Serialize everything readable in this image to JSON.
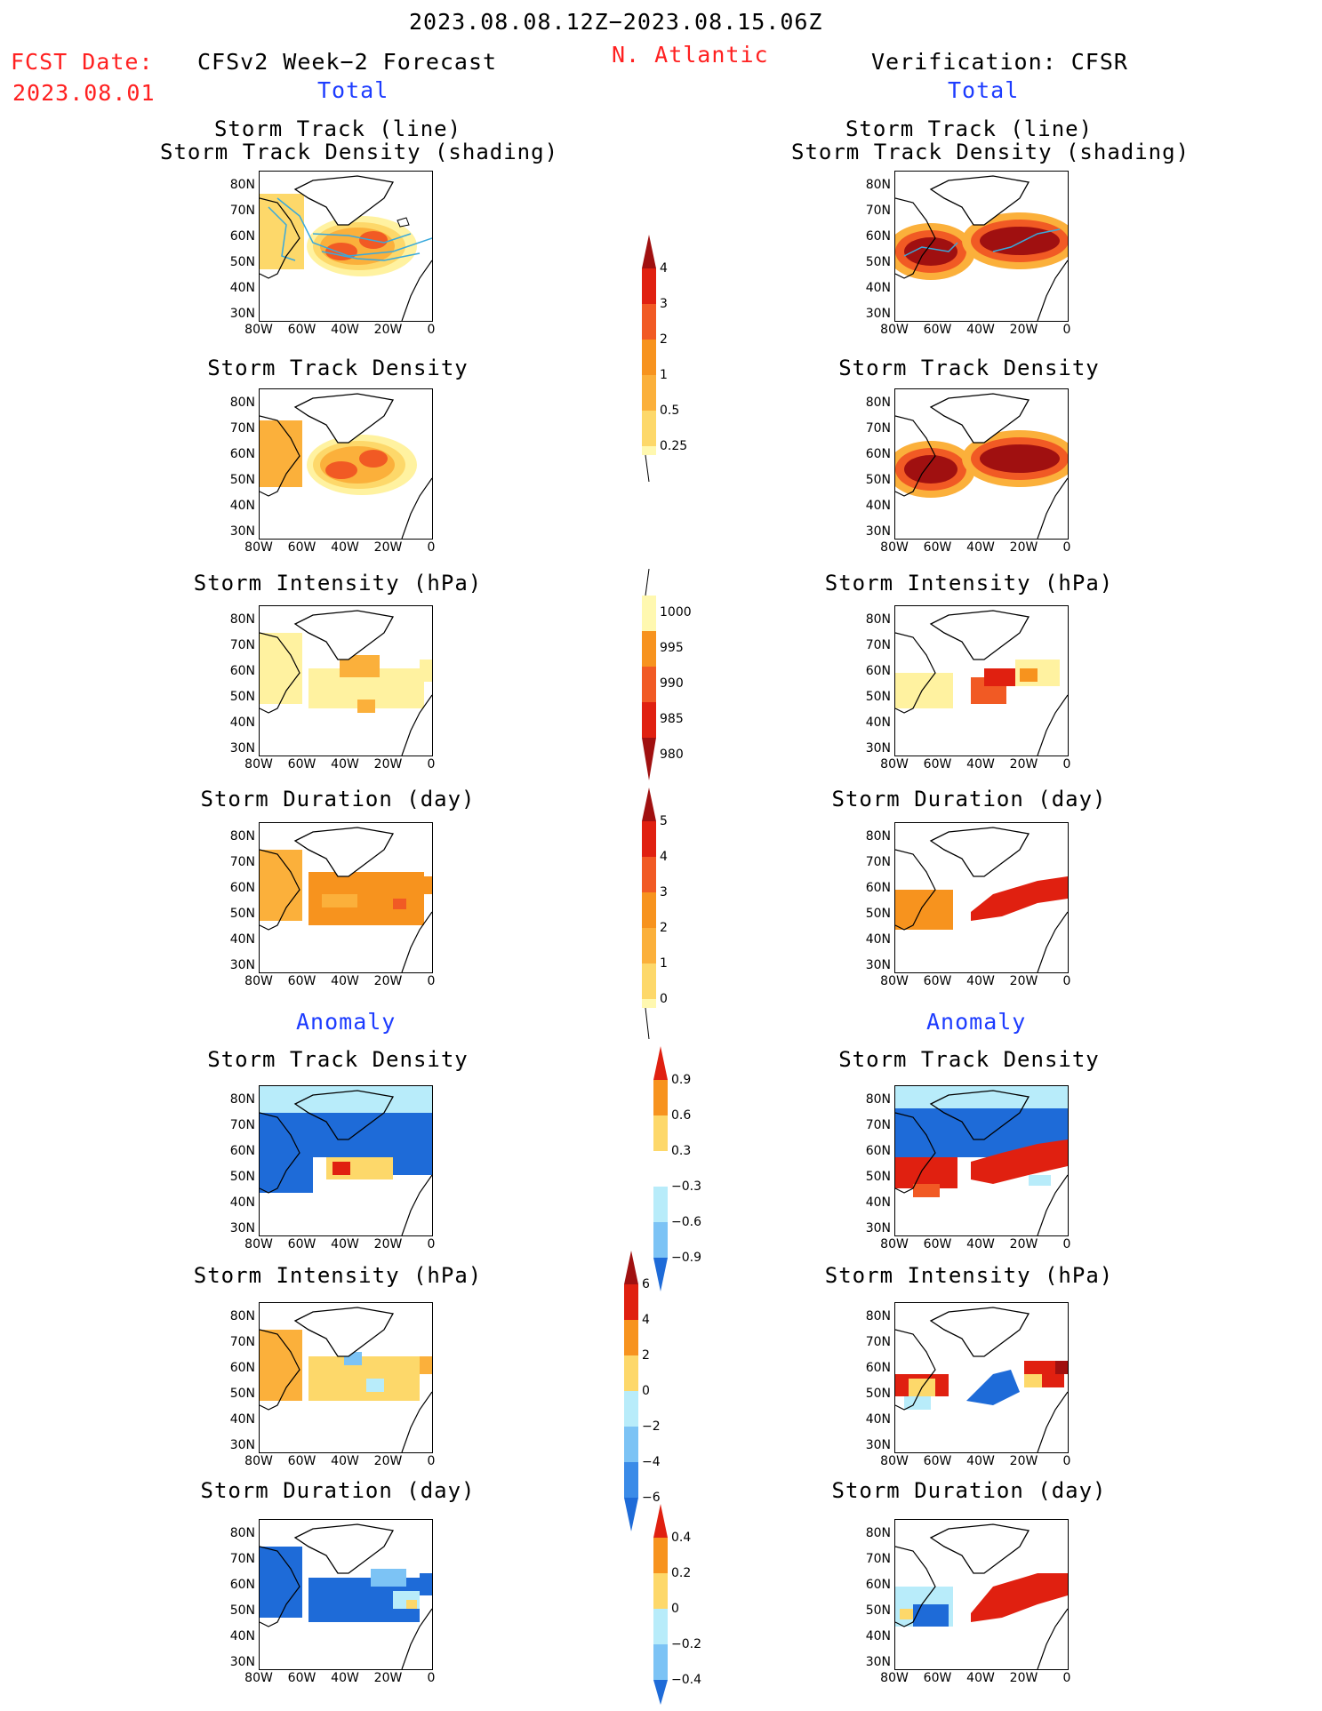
{
  "header": {
    "period": "2023.08.08.12Z−2023.08.15.06Z",
    "region": "N. Atlantic",
    "fcst_label": "FCST Date:",
    "fcst_date": "2023.08.01",
    "left_title": "CFSv2 Week−2 Forecast",
    "right_title": "Verification: CFSR",
    "left_total": "Total",
    "right_total": "Total",
    "left_anomaly": "Anomaly",
    "right_anomaly": "Anomaly"
  },
  "axes": {
    "lat_labels": [
      "80N",
      "70N",
      "60N",
      "50N",
      "40N",
      "30N"
    ],
    "lon_labels": [
      "80W",
      "60W",
      "40W",
      "20W",
      "0"
    ]
  },
  "panels": {
    "p1_title_a": "Storm Track (line)",
    "p1_title_b": "Storm Track Density (shading)",
    "p2_title": "Storm Track Density",
    "p3_title": "Storm Intensity (hPa)",
    "p4_title": "Storm Duration (day)",
    "p5_title": "Storm Track Density",
    "p6_title": "Storm Intensity (hPa)",
    "p7_title": "Storm Duration (day)"
  },
  "colorbars": {
    "density": [
      "4",
      "3",
      "2",
      "1",
      "0.5",
      "0.25"
    ],
    "intensity": [
      "1000",
      "995",
      "990",
      "985",
      "980"
    ],
    "duration": [
      "5",
      "4",
      "3",
      "2",
      "1",
      "0"
    ],
    "density_anom": [
      "0.9",
      "0.6",
      "0.3",
      "−0.3",
      "−0.6",
      "−0.9"
    ],
    "intensity_anom": [
      "6",
      "4",
      "2",
      "0",
      "−2",
      "−4",
      "−6"
    ],
    "duration_anom": [
      "0.4",
      "0.2",
      "0",
      "−0.2",
      "−0.4"
    ]
  },
  "colors": {
    "yellow_light": "#fff8b0",
    "yellow": "#fdd86a",
    "orange_light": "#fbb03b",
    "orange": "#f7931e",
    "orange_red": "#f15a24",
    "red": "#e02010",
    "dark_red": "#a01010",
    "blue_light": "#b8ecfa",
    "blue_mid": "#7cc3f5",
    "blue": "#1e6bd8",
    "track_line": "#39a9dc"
  }
}
